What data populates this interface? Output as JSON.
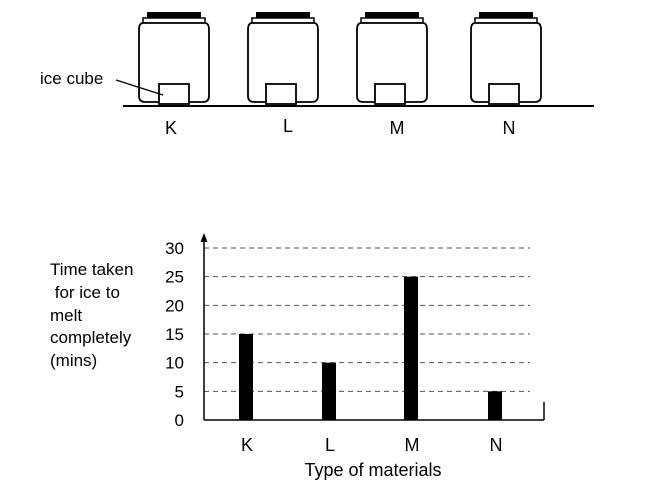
{
  "illustration": {
    "callout_label": "ice cube",
    "containers": [
      "K",
      "L",
      "M",
      "N"
    ]
  },
  "chart_data": {
    "type": "bar",
    "categories": [
      "K",
      "L",
      "M",
      "N"
    ],
    "values": [
      15,
      10,
      25,
      5
    ],
    "ylabel_lines": [
      "Time taken",
      " for ice to",
      "melt",
      "completely",
      "(mins)"
    ],
    "xlabel": "Type of materials",
    "yticks": [
      0,
      5,
      10,
      15,
      20,
      25,
      30
    ],
    "ylim": [
      0,
      30
    ],
    "grid": "dashed horizontal"
  }
}
